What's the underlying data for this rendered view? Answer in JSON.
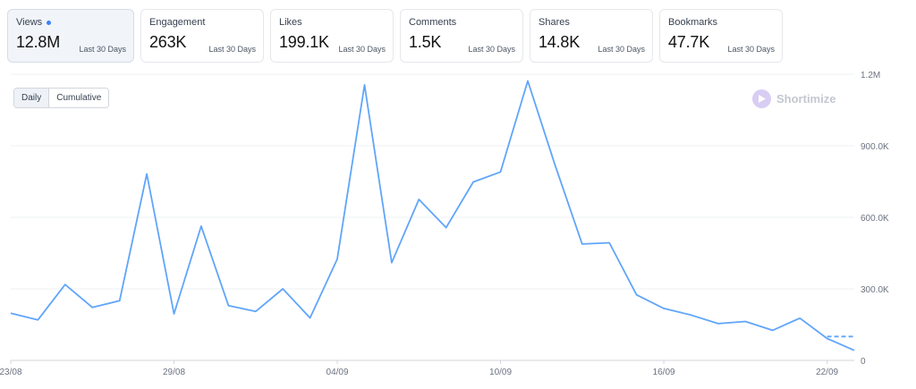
{
  "metrics": [
    {
      "title": "Views",
      "value": "12.8M",
      "period": "Last 30 Days",
      "active": true
    },
    {
      "title": "Engagement",
      "value": "263K",
      "period": "Last 30 Days"
    },
    {
      "title": "Likes",
      "value": "199.1K",
      "period": "Last 30 Days"
    },
    {
      "title": "Comments",
      "value": "1.5K",
      "period": "Last 30 Days"
    },
    {
      "title": "Shares",
      "value": "14.8K",
      "period": "Last 30 Days"
    },
    {
      "title": "Bookmarks",
      "value": "47.7K",
      "period": "Last 30 Days"
    }
  ],
  "toggle": {
    "daily": "Daily",
    "cumulative": "Cumulative"
  },
  "watermark": "Shortimize",
  "chart_data": {
    "type": "line",
    "x": [
      "23/08",
      "24/08",
      "25/08",
      "26/08",
      "27/08",
      "28/08",
      "29/08",
      "30/08",
      "31/08",
      "01/09",
      "02/09",
      "03/09",
      "04/09",
      "05/09",
      "06/09",
      "07/09",
      "08/09",
      "09/09",
      "10/09",
      "11/09",
      "12/09",
      "13/09",
      "14/09",
      "15/09",
      "16/09",
      "17/09",
      "18/09",
      "19/09",
      "20/09",
      "21/09",
      "22/09",
      "23/09"
    ],
    "xticks": [
      "23/08",
      "29/08",
      "04/09",
      "10/09",
      "16/09",
      "22/09"
    ],
    "series": [
      {
        "values": [
          198000,
          170000,
          318000,
          222000,
          250000,
          782000,
          195000,
          563000,
          230000,
          205000,
          300000,
          178000,
          425000,
          1155000,
          410000,
          675000,
          557000,
          748000,
          790000,
          1172000,
          820000,
          488000,
          493000,
          275000,
          218000,
          190000,
          154000,
          163000,
          126000,
          177000,
          92000,
          42000
        ],
        "dashed_tail": 100000
      }
    ],
    "ylim": [
      0,
      1200000
    ],
    "yticks": [
      "0",
      "300.0K",
      "600.0K",
      "900.0K",
      "1.2M"
    ],
    "ytick_values": [
      0,
      300000,
      600000,
      900000,
      1200000
    ],
    "grid": true,
    "y_axis_side": "right",
    "color": "#60a5fa"
  }
}
